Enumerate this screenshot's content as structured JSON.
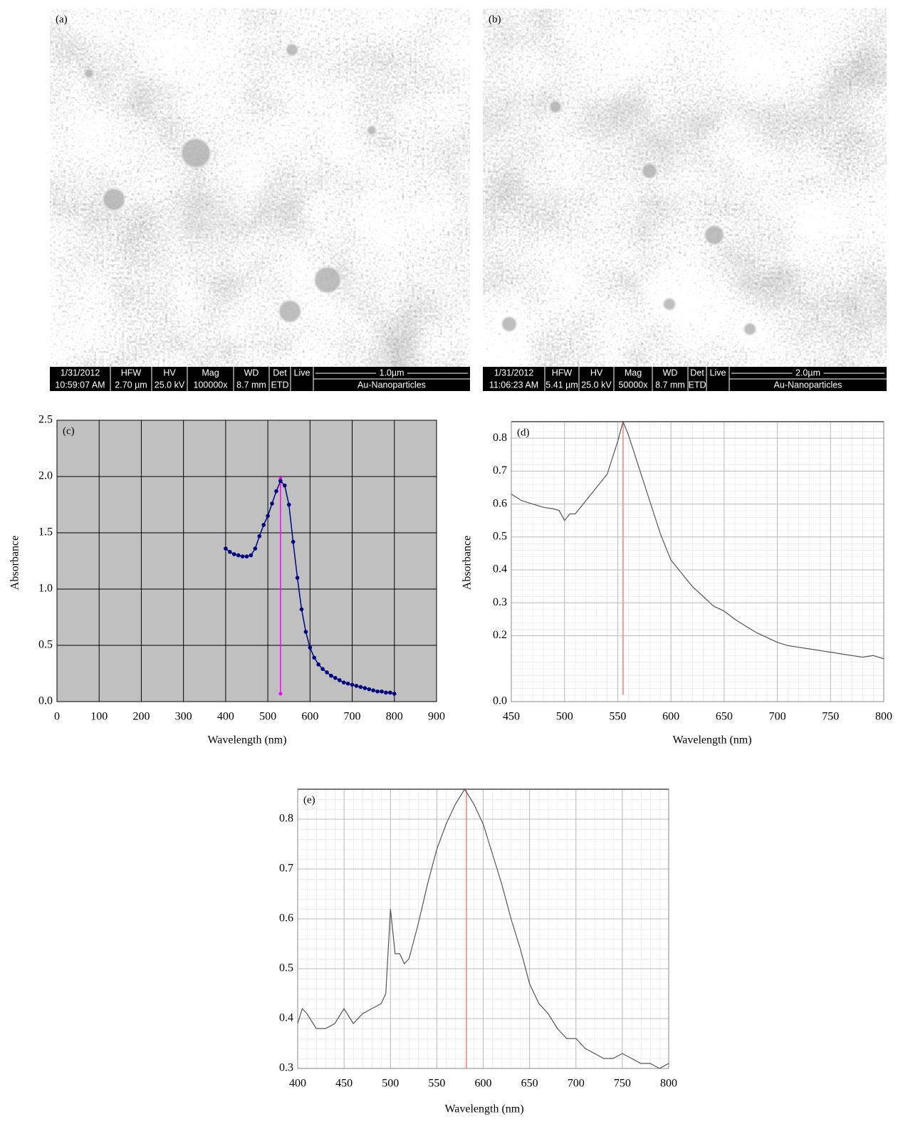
{
  "images": [
    {
      "label": "(a)",
      "columns": [
        [
          "1/31/2012",
          "10:59:07 AM"
        ],
        [
          "HFW",
          "2.70 µm"
        ],
        [
          "HV",
          "25.0 kV"
        ],
        [
          "Mag",
          "100000x"
        ],
        [
          "WD",
          "8.7 mm"
        ],
        [
          "Det",
          "ETD"
        ],
        [
          "Live"
        ]
      ],
      "scale": "1.0µm",
      "name": "Au-Nanoparticles"
    },
    {
      "label": "(b)",
      "columns": [
        [
          "1/31/2012",
          "11:06:23 AM"
        ],
        [
          "HFW",
          "5.41 µm"
        ],
        [
          "HV",
          "25.0 kV"
        ],
        [
          "Mag",
          "50000x"
        ],
        [
          "WD",
          "8.7 mm"
        ],
        [
          "Det",
          "ETD"
        ],
        [
          "Live"
        ]
      ],
      "scale": "2.0µm",
      "name": "Au-Nanoparticles"
    }
  ],
  "chart_data": [
    {
      "type": "line",
      "panel_label": "(c)",
      "xlabel": "Wavelength (nm)",
      "ylabel": "Absorbance",
      "x": [
        400,
        410,
        420,
        430,
        440,
        450,
        460,
        470,
        480,
        490,
        500,
        510,
        520,
        530,
        540,
        550,
        560,
        570,
        580,
        590,
        600,
        610,
        620,
        630,
        640,
        650,
        660,
        670,
        680,
        690,
        700,
        710,
        720,
        730,
        740,
        750,
        760,
        770,
        780,
        790,
        800
      ],
      "values": [
        1.36,
        1.33,
        1.31,
        1.3,
        1.29,
        1.29,
        1.3,
        1.36,
        1.47,
        1.57,
        1.65,
        1.76,
        1.87,
        1.96,
        1.92,
        1.75,
        1.42,
        1.1,
        0.82,
        0.62,
        0.48,
        0.39,
        0.33,
        0.29,
        0.26,
        0.23,
        0.21,
        0.19,
        0.17,
        0.16,
        0.15,
        0.14,
        0.13,
        0.12,
        0.11,
        0.1,
        0.09,
        0.09,
        0.08,
        0.08,
        0.07
      ],
      "color": "#000080",
      "markers": true,
      "peak_line": {
        "x": 530,
        "y": [
          0.07,
          1.98
        ],
        "color": "#ff00ff"
      },
      "xlim": [
        0,
        900
      ],
      "xticks": [
        0,
        100,
        200,
        300,
        400,
        500,
        600,
        700,
        800,
        900
      ],
      "ylim": [
        0,
        2.5
      ],
      "yticks": [
        {
          "value": 0,
          "label": "0.0"
        },
        0.5,
        {
          "value": 1,
          "label": "1.0"
        },
        1.5,
        {
          "value": 2,
          "label": "2.0"
        },
        2.5
      ],
      "grid": true,
      "grid_color": "#000000",
      "background": "#c0c0c0",
      "minor_grid": false
    },
    {
      "type": "line",
      "panel_label": "(d)",
      "xlabel": "Wavelength (nm)",
      "ylabel": "Absorbance",
      "x": [
        450,
        460,
        470,
        480,
        490,
        495,
        500,
        505,
        510,
        520,
        530,
        540,
        550,
        555,
        560,
        570,
        580,
        590,
        600,
        610,
        620,
        630,
        640,
        650,
        660,
        670,
        680,
        690,
        700,
        710,
        720,
        730,
        740,
        750,
        760,
        770,
        780,
        790,
        800
      ],
      "values": [
        0.63,
        0.61,
        0.6,
        0.59,
        0.585,
        0.58,
        0.55,
        0.57,
        0.57,
        0.61,
        0.65,
        0.69,
        0.79,
        0.85,
        0.81,
        0.71,
        0.61,
        0.51,
        0.43,
        0.39,
        0.35,
        0.32,
        0.29,
        0.275,
        0.25,
        0.23,
        0.21,
        0.195,
        0.18,
        0.17,
        0.165,
        0.16,
        0.155,
        0.15,
        0.145,
        0.14,
        0.135,
        0.14,
        0.13
      ],
      "color": "#555555",
      "markers": false,
      "peak_line": {
        "x": 555,
        "y": [
          0.02,
          0.85
        ],
        "color": "#f08080"
      },
      "xlim": [
        450,
        800
      ],
      "xticks": [
        450,
        500,
        550,
        600,
        650,
        700,
        750,
        800
      ],
      "ylim": [
        0,
        0.85
      ],
      "yticks": [
        {
          "value": 0,
          "label": "0.0"
        },
        0.2,
        0.3,
        0.4,
        0.5,
        0.6,
        0.7,
        0.8
      ],
      "grid": true,
      "grid_color": "#bbbbbb",
      "background": "#ffffff",
      "minor_grid": true
    },
    {
      "type": "line",
      "panel_label": "(e)",
      "xlabel": "Wavelength (nm)",
      "x": [
        400,
        405,
        410,
        420,
        430,
        440,
        450,
        460,
        470,
        480,
        490,
        495,
        500,
        505,
        510,
        515,
        520,
        530,
        540,
        550,
        560,
        570,
        580,
        590,
        600,
        610,
        620,
        630,
        640,
        650,
        660,
        670,
        680,
        690,
        700,
        710,
        720,
        730,
        740,
        750,
        760,
        770,
        780,
        790,
        800
      ],
      "values": [
        0.39,
        0.42,
        0.41,
        0.38,
        0.38,
        0.39,
        0.42,
        0.39,
        0.41,
        0.42,
        0.43,
        0.45,
        0.62,
        0.53,
        0.53,
        0.51,
        0.52,
        0.59,
        0.67,
        0.74,
        0.79,
        0.83,
        0.86,
        0.83,
        0.79,
        0.73,
        0.67,
        0.6,
        0.54,
        0.47,
        0.43,
        0.41,
        0.38,
        0.36,
        0.36,
        0.34,
        0.33,
        0.32,
        0.32,
        0.33,
        0.32,
        0.31,
        0.31,
        0.3,
        0.31
      ],
      "color": "#555555",
      "markers": false,
      "peak_line": {
        "x": 582,
        "y": [
          0.3,
          0.86
        ],
        "color": "#f08080"
      },
      "xlim": [
        400,
        800
      ],
      "xticks": [
        400,
        450,
        500,
        550,
        600,
        650,
        700,
        750,
        800
      ],
      "ylim": [
        0.3,
        0.86
      ],
      "yticks": [
        0.3,
        0.4,
        0.5,
        0.6,
        0.7,
        0.8
      ],
      "grid": true,
      "grid_color": "#bbbbbb",
      "background": "#ffffff",
      "minor_grid": true
    }
  ]
}
